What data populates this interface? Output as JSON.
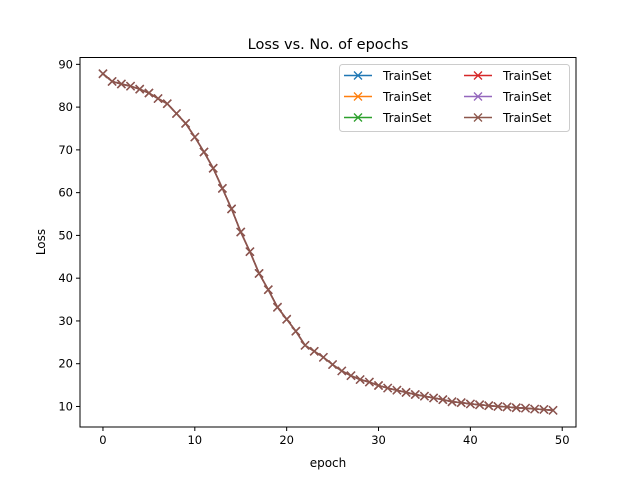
{
  "chart_data": {
    "type": "line",
    "title": "Loss vs. No. of epochs",
    "xlabel": "epoch",
    "ylabel": "Loss",
    "xlim": [
      -2.5,
      51.5
    ],
    "ylim": [
      5.2,
      91.6
    ],
    "xticks": [
      0,
      10,
      20,
      30,
      40,
      50
    ],
    "yticks": [
      10,
      20,
      30,
      40,
      50,
      60,
      70,
      80,
      90
    ],
    "grid": false,
    "legend": {
      "placement": "top-right",
      "columns": 2
    },
    "x": [
      0,
      1,
      2,
      3,
      4,
      5,
      6,
      7,
      8,
      9,
      10,
      11,
      12,
      13,
      14,
      15,
      16,
      17,
      18,
      19,
      20,
      21,
      22,
      23,
      24,
      25,
      26,
      27,
      28,
      29,
      30,
      31,
      32,
      33,
      34,
      35,
      36,
      37,
      38,
      39,
      40,
      41,
      42,
      43,
      44,
      45,
      46,
      47,
      48,
      49
    ],
    "series": [
      {
        "name": "TrainSet",
        "color": "#1f77b4",
        "marker": "x",
        "values": [
          87.8,
          86.0,
          85.4,
          84.9,
          84.2,
          83.3,
          82.0,
          80.8,
          78.5,
          76.2,
          73.0,
          69.5,
          65.7,
          61.0,
          56.2,
          50.8,
          46.2,
          41.1,
          37.3,
          33.2,
          30.4,
          27.6,
          24.3,
          22.9,
          21.5,
          19.8,
          18.3,
          17.2,
          16.3,
          15.7,
          14.9,
          14.3,
          13.8,
          13.3,
          12.8,
          12.4,
          12.0,
          11.6,
          11.1,
          10.9,
          10.6,
          10.4,
          10.2,
          10.0,
          9.9,
          9.7,
          9.6,
          9.4,
          9.3,
          9.1
        ]
      },
      {
        "name": "TrainSet",
        "color": "#ff7f0e",
        "marker": "x",
        "values": [
          87.8,
          86.0,
          85.4,
          84.9,
          84.2,
          83.3,
          82.0,
          80.8,
          78.5,
          76.2,
          73.0,
          69.5,
          65.7,
          61.0,
          56.2,
          50.8,
          46.2,
          41.1,
          37.3,
          33.2,
          30.4,
          27.6,
          24.3,
          22.9,
          21.5,
          19.8,
          18.3,
          17.2,
          16.3,
          15.7,
          14.9,
          14.3,
          13.8,
          13.3,
          12.8,
          12.4,
          12.0,
          11.6,
          11.1,
          10.9,
          10.6,
          10.4,
          10.2,
          10.0,
          9.9,
          9.7,
          9.6,
          9.4,
          9.3,
          9.1
        ]
      },
      {
        "name": "TrainSet",
        "color": "#2ca02c",
        "marker": "x",
        "values": [
          87.8,
          86.0,
          85.4,
          84.9,
          84.2,
          83.3,
          82.0,
          80.8,
          78.5,
          76.2,
          73.0,
          69.5,
          65.7,
          61.0,
          56.2,
          50.8,
          46.2,
          41.1,
          37.3,
          33.2,
          30.4,
          27.6,
          24.3,
          22.9,
          21.5,
          19.8,
          18.3,
          17.2,
          16.3,
          15.7,
          14.9,
          14.3,
          13.8,
          13.3,
          12.8,
          12.4,
          12.0,
          11.6,
          11.1,
          10.9,
          10.6,
          10.4,
          10.2,
          10.0,
          9.9,
          9.7,
          9.6,
          9.4,
          9.3,
          9.1
        ]
      },
      {
        "name": "TrainSet",
        "color": "#d62728",
        "marker": "x",
        "values": [
          87.8,
          86.0,
          85.4,
          84.9,
          84.2,
          83.3,
          82.0,
          80.8,
          78.5,
          76.2,
          73.0,
          69.5,
          65.7,
          61.0,
          56.2,
          50.8,
          46.2,
          41.1,
          37.3,
          33.2,
          30.4,
          27.6,
          24.3,
          22.9,
          21.5,
          19.8,
          18.3,
          17.2,
          16.3,
          15.7,
          14.9,
          14.3,
          13.8,
          13.3,
          12.8,
          12.4,
          12.0,
          11.6,
          11.1,
          10.9,
          10.6,
          10.4,
          10.2,
          10.0,
          9.9,
          9.7,
          9.6,
          9.4,
          9.3,
          9.1
        ]
      },
      {
        "name": "TrainSet",
        "color": "#9467bd",
        "marker": "x",
        "values": [
          87.8,
          86.0,
          85.4,
          84.9,
          84.2,
          83.3,
          82.0,
          80.8,
          78.5,
          76.2,
          73.0,
          69.5,
          65.7,
          61.0,
          56.2,
          50.8,
          46.2,
          41.1,
          37.3,
          33.2,
          30.4,
          27.6,
          24.3,
          22.9,
          21.5,
          19.8,
          18.3,
          17.2,
          16.3,
          15.7,
          14.9,
          14.3,
          13.8,
          13.3,
          12.8,
          12.4,
          12.0,
          11.6,
          11.1,
          10.9,
          10.6,
          10.4,
          10.2,
          10.0,
          9.9,
          9.7,
          9.6,
          9.4,
          9.3,
          9.1
        ]
      },
      {
        "name": "TrainSet",
        "color": "#8c564b",
        "marker": "x",
        "values": [
          87.8,
          86.0,
          85.4,
          84.9,
          84.2,
          83.3,
          82.0,
          80.8,
          78.5,
          76.2,
          73.0,
          69.5,
          65.7,
          61.0,
          56.2,
          50.8,
          46.2,
          41.1,
          37.3,
          33.2,
          30.4,
          27.6,
          24.3,
          22.9,
          21.5,
          19.8,
          18.3,
          17.2,
          16.3,
          15.7,
          14.9,
          14.3,
          13.8,
          13.3,
          12.8,
          12.4,
          12.0,
          11.6,
          11.1,
          10.9,
          10.6,
          10.4,
          10.2,
          10.0,
          9.9,
          9.7,
          9.6,
          9.4,
          9.3,
          9.1
        ]
      }
    ]
  }
}
